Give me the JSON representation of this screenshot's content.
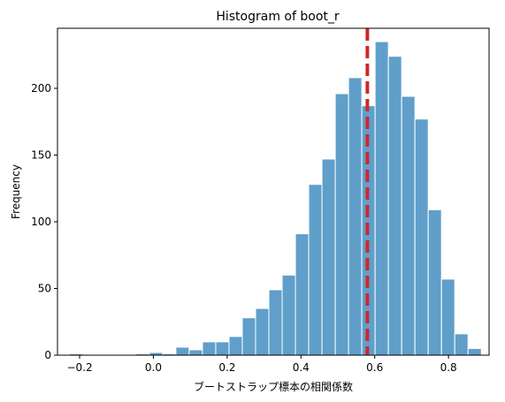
{
  "chart_data": {
    "type": "bar",
    "title": "Histogram of boot_r",
    "xlabel": "ブートストラップ標本の相関係数",
    "ylabel": "Frequency",
    "xlim": [
      -0.26,
      0.91
    ],
    "ylim": [
      0,
      245
    ],
    "xticks": [
      -0.2,
      0.0,
      0.2,
      0.4,
      0.6,
      0.8
    ],
    "xtick_labels": [
      "−0.2",
      "0.0",
      "0.2",
      "0.4",
      "0.6",
      "0.8"
    ],
    "yticks": [
      0,
      50,
      100,
      150,
      200
    ],
    "ytick_labels": [
      "0",
      "50",
      "100",
      "150",
      "200"
    ],
    "bin_width": 0.036,
    "bins": [
      {
        "x0": -0.227,
        "count": 1
      },
      {
        "x0": -0.191,
        "count": 0
      },
      {
        "x0": -0.155,
        "count": 0
      },
      {
        "x0": -0.119,
        "count": 0
      },
      {
        "x0": -0.083,
        "count": 0
      },
      {
        "x0": -0.047,
        "count": 1
      },
      {
        "x0": -0.011,
        "count": 2
      },
      {
        "x0": 0.025,
        "count": 1
      },
      {
        "x0": 0.061,
        "count": 6
      },
      {
        "x0": 0.097,
        "count": 4
      },
      {
        "x0": 0.133,
        "count": 10
      },
      {
        "x0": 0.169,
        "count": 10
      },
      {
        "x0": 0.205,
        "count": 14
      },
      {
        "x0": 0.241,
        "count": 28
      },
      {
        "x0": 0.277,
        "count": 35
      },
      {
        "x0": 0.313,
        "count": 49
      },
      {
        "x0": 0.349,
        "count": 60
      },
      {
        "x0": 0.385,
        "count": 91
      },
      {
        "x0": 0.421,
        "count": 128
      },
      {
        "x0": 0.457,
        "count": 147
      },
      {
        "x0": 0.493,
        "count": 196
      },
      {
        "x0": 0.529,
        "count": 208
      },
      {
        "x0": 0.565,
        "count": 187
      },
      {
        "x0": 0.601,
        "count": 235
      },
      {
        "x0": 0.637,
        "count": 224
      },
      {
        "x0": 0.673,
        "count": 194
      },
      {
        "x0": 0.709,
        "count": 177
      },
      {
        "x0": 0.745,
        "count": 109
      },
      {
        "x0": 0.781,
        "count": 57
      },
      {
        "x0": 0.817,
        "count": 16
      },
      {
        "x0": 0.853,
        "count": 5
      }
    ],
    "reference_line": {
      "x": 0.58,
      "style": "dashed"
    },
    "colors": {
      "bar": "#5f9fca",
      "bar_edge": "#ffffff",
      "reference_line": "#cc2a2a"
    },
    "grid": false
  }
}
